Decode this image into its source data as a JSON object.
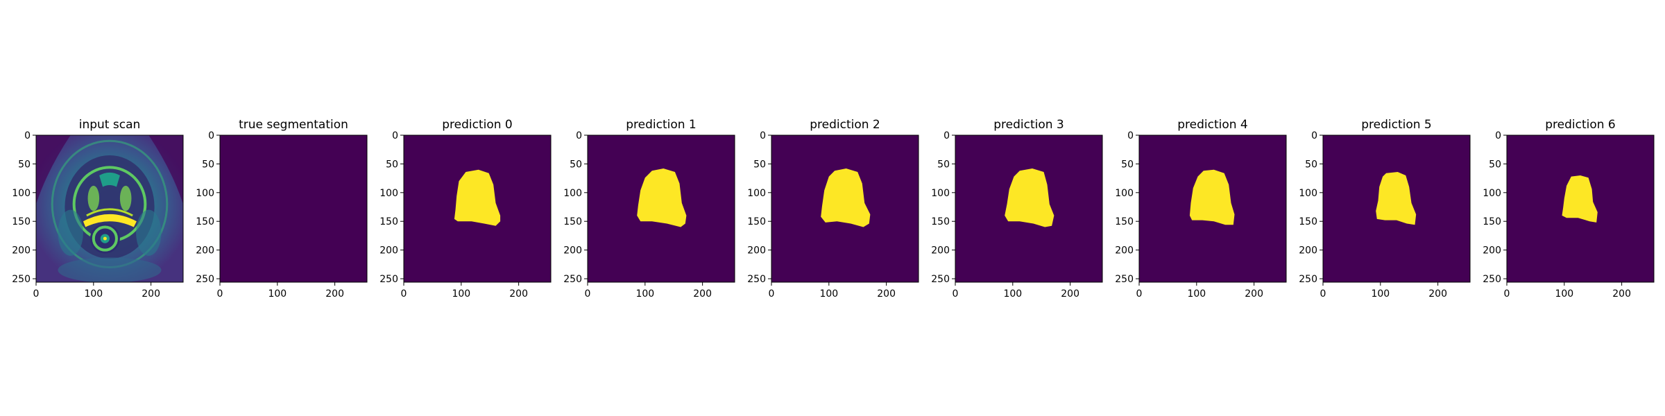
{
  "figure": {
    "colormap": {
      "low": "#440154",
      "high": "#fde725",
      "mid": "#21918c"
    }
  },
  "chart_data": [
    {
      "type": "heatmap",
      "title": "input scan",
      "content": "mri-scan",
      "xlim": [
        0,
        256
      ],
      "ylim": [
        256,
        0
      ],
      "xticks": [
        0,
        100,
        200
      ],
      "yticks": [
        0,
        50,
        100,
        150,
        200,
        250
      ],
      "mask": []
    },
    {
      "type": "heatmap",
      "title": "true segmentation",
      "content": "empty-mask",
      "xlim": [
        0,
        256
      ],
      "ylim": [
        256,
        0
      ],
      "xticks": [
        0,
        100,
        200
      ],
      "yticks": [
        0,
        50,
        100,
        150,
        200,
        250
      ],
      "mask": []
    },
    {
      "type": "heatmap",
      "title": "prediction 0",
      "content": "mask",
      "xlim": [
        0,
        256
      ],
      "ylim": [
        256,
        0
      ],
      "xticks": [
        0,
        100,
        200
      ],
      "yticks": [
        0,
        50,
        100,
        150,
        200,
        250
      ],
      "mask": [
        [
          108,
          64
        ],
        [
          130,
          60
        ],
        [
          148,
          66
        ],
        [
          156,
          86
        ],
        [
          160,
          118
        ],
        [
          168,
          140
        ],
        [
          168,
          150
        ],
        [
          160,
          158
        ],
        [
          140,
          154
        ],
        [
          118,
          150
        ],
        [
          94,
          150
        ],
        [
          88,
          146
        ],
        [
          90,
          130
        ],
        [
          92,
          106
        ],
        [
          96,
          80
        ]
      ]
    },
    {
      "type": "heatmap",
      "title": "prediction 1",
      "content": "mask",
      "xlim": [
        0,
        256
      ],
      "ylim": [
        256,
        0
      ],
      "xticks": [
        0,
        100,
        200
      ],
      "yticks": [
        0,
        50,
        100,
        150,
        200,
        250
      ],
      "mask": [
        [
          112,
          62
        ],
        [
          132,
          58
        ],
        [
          152,
          64
        ],
        [
          160,
          84
        ],
        [
          164,
          118
        ],
        [
          172,
          140
        ],
        [
          170,
          154
        ],
        [
          162,
          160
        ],
        [
          138,
          154
        ],
        [
          112,
          150
        ],
        [
          92,
          150
        ],
        [
          86,
          140
        ],
        [
          88,
          122
        ],
        [
          92,
          96
        ],
        [
          100,
          74
        ]
      ]
    },
    {
      "type": "heatmap",
      "title": "prediction 2",
      "content": "mask",
      "xlim": [
        0,
        256
      ],
      "ylim": [
        256,
        0
      ],
      "xticks": [
        0,
        100,
        200
      ],
      "yticks": [
        0,
        50,
        100,
        150,
        200,
        250
      ],
      "mask": [
        [
          110,
          62
        ],
        [
          130,
          58
        ],
        [
          150,
          64
        ],
        [
          158,
          84
        ],
        [
          162,
          118
        ],
        [
          172,
          138
        ],
        [
          170,
          154
        ],
        [
          160,
          160
        ],
        [
          138,
          154
        ],
        [
          114,
          150
        ],
        [
          94,
          152
        ],
        [
          86,
          142
        ],
        [
          88,
          124
        ],
        [
          92,
          96
        ],
        [
          100,
          72
        ]
      ]
    },
    {
      "type": "heatmap",
      "title": "prediction 3",
      "content": "mask",
      "xlim": [
        0,
        256
      ],
      "ylim": [
        256,
        0
      ],
      "xticks": [
        0,
        100,
        200
      ],
      "yticks": [
        0,
        50,
        100,
        150,
        200,
        250
      ],
      "mask": [
        [
          112,
          62
        ],
        [
          134,
          58
        ],
        [
          154,
          64
        ],
        [
          160,
          86
        ],
        [
          164,
          120
        ],
        [
          172,
          140
        ],
        [
          168,
          158
        ],
        [
          156,
          160
        ],
        [
          136,
          154
        ],
        [
          112,
          150
        ],
        [
          92,
          150
        ],
        [
          86,
          140
        ],
        [
          90,
          120
        ],
        [
          94,
          94
        ],
        [
          102,
          72
        ]
      ]
    },
    {
      "type": "heatmap",
      "title": "prediction 4",
      "content": "mask",
      "xlim": [
        0,
        256
      ],
      "ylim": [
        256,
        0
      ],
      "xticks": [
        0,
        100,
        200
      ],
      "yticks": [
        0,
        50,
        100,
        150,
        200,
        250
      ],
      "mask": [
        [
          112,
          62
        ],
        [
          130,
          60
        ],
        [
          148,
          66
        ],
        [
          156,
          86
        ],
        [
          160,
          118
        ],
        [
          166,
          138
        ],
        [
          164,
          156
        ],
        [
          150,
          156
        ],
        [
          130,
          150
        ],
        [
          110,
          148
        ],
        [
          92,
          148
        ],
        [
          88,
          140
        ],
        [
          90,
          118
        ],
        [
          94,
          92
        ],
        [
          102,
          72
        ]
      ]
    },
    {
      "type": "heatmap",
      "title": "prediction 5",
      "content": "mask",
      "xlim": [
        0,
        256
      ],
      "ylim": [
        256,
        0
      ],
      "xticks": [
        0,
        100,
        200
      ],
      "yticks": [
        0,
        50,
        100,
        150,
        200,
        250
      ],
      "mask": [
        [
          110,
          66
        ],
        [
          130,
          64
        ],
        [
          144,
          70
        ],
        [
          150,
          90
        ],
        [
          154,
          118
        ],
        [
          162,
          138
        ],
        [
          160,
          156
        ],
        [
          146,
          154
        ],
        [
          128,
          148
        ],
        [
          108,
          148
        ],
        [
          94,
          146
        ],
        [
          92,
          132
        ],
        [
          96,
          114
        ],
        [
          98,
          90
        ],
        [
          104,
          72
        ]
      ]
    },
    {
      "type": "heatmap",
      "title": "prediction 6",
      "content": "mask",
      "xlim": [
        0,
        256
      ],
      "ylim": [
        256,
        0
      ],
      "xticks": [
        0,
        100,
        200
      ],
      "yticks": [
        0,
        50,
        100,
        150,
        200,
        250
      ],
      "mask": [
        [
          112,
          72
        ],
        [
          128,
          70
        ],
        [
          142,
          74
        ],
        [
          148,
          94
        ],
        [
          150,
          116
        ],
        [
          158,
          134
        ],
        [
          156,
          152
        ],
        [
          144,
          150
        ],
        [
          124,
          144
        ],
        [
          104,
          144
        ],
        [
          96,
          140
        ],
        [
          98,
          126
        ],
        [
          100,
          110
        ],
        [
          104,
          88
        ]
      ]
    }
  ]
}
